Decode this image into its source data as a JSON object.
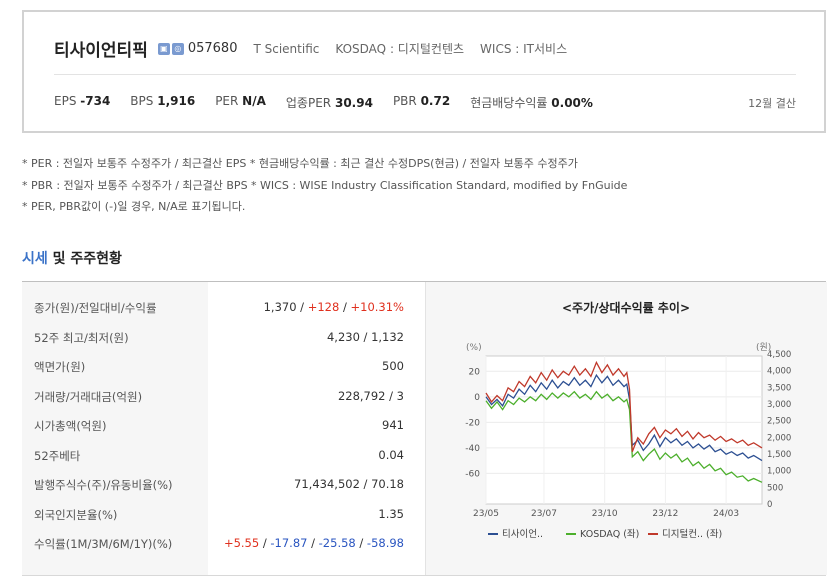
{
  "company": {
    "name": "티사이언티픽",
    "badge_icons": [
      "building-icon",
      "exchange-icon"
    ],
    "code": "057680",
    "english_name": "T Scientific",
    "market": "KOSDAQ : 디지털컨텐츠",
    "wics": "WICS : IT서비스"
  },
  "metrics": [
    {
      "label": "EPS",
      "value": "-734"
    },
    {
      "label": "BPS",
      "value": "1,916"
    },
    {
      "label": "PER",
      "value": "N/A"
    },
    {
      "label": "업종PER",
      "value": "30.94"
    },
    {
      "label": "PBR",
      "value": "0.72"
    },
    {
      "label": "현금배당수익률",
      "value": "0.00%"
    }
  ],
  "closing_month": "12월 결산",
  "notes": [
    "* PER : 전일자 보통주 수정주가 / 최근결산 EPS * 현금배당수익률 : 최근 결산 수정DPS(현금) / 전일자 보통주 수정주가",
    "* PBR : 전일자 보통주 수정주가 / 최근결산 BPS * WICS : WISE Industry Classification Standard, modified by FnGuide",
    "* PER, PBR값이 (-)일 경우, N/A로 표기됩니다."
  ],
  "section": {
    "accent": "시세",
    "rest": " 및 주주현황"
  },
  "table": {
    "price_row": {
      "label": "종가(원)/전일대비/수익률",
      "price": "1,370",
      "change": "+128",
      "rate": "+10.31%"
    },
    "rows": [
      {
        "label": "52주 최고/최저(원)",
        "value": "4,230 / 1,132"
      },
      {
        "label": "액면가(원)",
        "value": "500"
      },
      {
        "label": "거래량/거래대금(억원)",
        "value": "228,792 / 3"
      },
      {
        "label": "시가총액(억원)",
        "value": "941"
      },
      {
        "label": "52주베타",
        "value": "0.04"
      },
      {
        "label": "발행주식수(주)/유동비율(%)",
        "value": "71,434,502 / 70.18"
      },
      {
        "label": "외국인지분율(%)",
        "value": "1.35"
      }
    ],
    "returns_row": {
      "label": "수익률(1M/3M/6M/1Y)(%)",
      "r1m": "+5.55",
      "r3m": "-17.87",
      "r6m": "-25.58",
      "r1y": "-58.98",
      "sep": " / "
    }
  },
  "chart_data": {
    "type": "line",
    "title": "<주가/상대수익률 추이>",
    "left_unit": "(%)",
    "right_unit": "(원)",
    "x_ticks": [
      "23/05",
      "23/07",
      "23/10",
      "23/12",
      "24/03"
    ],
    "y_left_ticks": [
      20,
      0,
      -20,
      -40,
      -60
    ],
    "y_left_range": [
      -84,
      32
    ],
    "y_right_ticks": [
      "4,500",
      "4,000",
      "3,500",
      "3,000",
      "2,500",
      "2,000",
      "1,500",
      "1,000",
      "500",
      "0"
    ],
    "y_right_range": [
      0,
      4500
    ],
    "x_range": [
      0,
      100
    ],
    "series": [
      {
        "name": "티사이언..",
        "axis": "left",
        "color": "#2c4f92",
        "points": [
          [
            0,
            0
          ],
          [
            2,
            -6
          ],
          [
            4,
            -2
          ],
          [
            6,
            -7
          ],
          [
            8,
            2
          ],
          [
            10,
            -1
          ],
          [
            12,
            6
          ],
          [
            14,
            2
          ],
          [
            16,
            9
          ],
          [
            18,
            4
          ],
          [
            20,
            11
          ],
          [
            22,
            6
          ],
          [
            24,
            13
          ],
          [
            26,
            7
          ],
          [
            28,
            12
          ],
          [
            30,
            9
          ],
          [
            32,
            15
          ],
          [
            34,
            9
          ],
          [
            36,
            13
          ],
          [
            38,
            8
          ],
          [
            40,
            17
          ],
          [
            42,
            11
          ],
          [
            44,
            16
          ],
          [
            46,
            9
          ],
          [
            48,
            13
          ],
          [
            50,
            8
          ],
          [
            51,
            10
          ],
          [
            52,
            -2
          ],
          [
            53,
            -38
          ],
          [
            55,
            -34
          ],
          [
            57,
            -42
          ],
          [
            59,
            -37
          ],
          [
            61,
            -30
          ],
          [
            63,
            -39
          ],
          [
            65,
            -32
          ],
          [
            67,
            -36
          ],
          [
            69,
            -33
          ],
          [
            71,
            -38
          ],
          [
            73,
            -35
          ],
          [
            75,
            -40
          ],
          [
            77,
            -37
          ],
          [
            79,
            -41
          ],
          [
            81,
            -38
          ],
          [
            83,
            -43
          ],
          [
            85,
            -41
          ],
          [
            87,
            -45
          ],
          [
            89,
            -43
          ],
          [
            91,
            -46
          ],
          [
            93,
            -44
          ],
          [
            95,
            -48
          ],
          [
            97,
            -46
          ],
          [
            100,
            -50
          ]
        ]
      },
      {
        "name": "KOSDAQ (좌)",
        "axis": "left",
        "color": "#4caf2c",
        "points": [
          [
            0,
            -3
          ],
          [
            2,
            -9
          ],
          [
            4,
            -4
          ],
          [
            6,
            -10
          ],
          [
            8,
            -3
          ],
          [
            10,
            -6
          ],
          [
            12,
            -1
          ],
          [
            14,
            -4
          ],
          [
            16,
            0
          ],
          [
            18,
            -3
          ],
          [
            20,
            2
          ],
          [
            22,
            -2
          ],
          [
            24,
            3
          ],
          [
            26,
            -1
          ],
          [
            28,
            3
          ],
          [
            30,
            0
          ],
          [
            32,
            4
          ],
          [
            34,
            -1
          ],
          [
            36,
            2
          ],
          [
            38,
            -2
          ],
          [
            40,
            4
          ],
          [
            42,
            -1
          ],
          [
            44,
            2
          ],
          [
            46,
            -3
          ],
          [
            48,
            0
          ],
          [
            50,
            -4
          ],
          [
            51,
            -2
          ],
          [
            52,
            -10
          ],
          [
            53,
            -47
          ],
          [
            55,
            -43
          ],
          [
            57,
            -50
          ],
          [
            59,
            -45
          ],
          [
            61,
            -41
          ],
          [
            63,
            -49
          ],
          [
            65,
            -44
          ],
          [
            67,
            -48
          ],
          [
            69,
            -45
          ],
          [
            71,
            -51
          ],
          [
            73,
            -48
          ],
          [
            75,
            -54
          ],
          [
            77,
            -51
          ],
          [
            79,
            -56
          ],
          [
            81,
            -53
          ],
          [
            83,
            -58
          ],
          [
            85,
            -56
          ],
          [
            87,
            -61
          ],
          [
            89,
            -59
          ],
          [
            91,
            -63
          ],
          [
            93,
            -62
          ],
          [
            95,
            -66
          ],
          [
            97,
            -64
          ],
          [
            100,
            -67
          ]
        ]
      },
      {
        "name": "디지털컨..",
        "axis": "left",
        "color": "#c0392b",
        "points": [
          [
            0,
            3
          ],
          [
            2,
            -4
          ],
          [
            4,
            1
          ],
          [
            6,
            -3
          ],
          [
            8,
            7
          ],
          [
            10,
            4
          ],
          [
            12,
            12
          ],
          [
            14,
            8
          ],
          [
            16,
            16
          ],
          [
            18,
            11
          ],
          [
            20,
            19
          ],
          [
            22,
            13
          ],
          [
            24,
            21
          ],
          [
            26,
            15
          ],
          [
            28,
            20
          ],
          [
            30,
            17
          ],
          [
            32,
            24
          ],
          [
            34,
            17
          ],
          [
            36,
            22
          ],
          [
            38,
            16
          ],
          [
            40,
            27
          ],
          [
            42,
            19
          ],
          [
            44,
            25
          ],
          [
            46,
            17
          ],
          [
            48,
            22
          ],
          [
            50,
            16
          ],
          [
            51,
            19
          ],
          [
            52,
            6
          ],
          [
            53,
            -43
          ],
          [
            55,
            -32
          ],
          [
            57,
            -37
          ],
          [
            59,
            -29
          ],
          [
            61,
            -24
          ],
          [
            63,
            -32
          ],
          [
            65,
            -26
          ],
          [
            67,
            -29
          ],
          [
            69,
            -25
          ],
          [
            71,
            -31
          ],
          [
            73,
            -27
          ],
          [
            75,
            -33
          ],
          [
            77,
            -28
          ],
          [
            79,
            -32
          ],
          [
            81,
            -30
          ],
          [
            83,
            -34
          ],
          [
            85,
            -31
          ],
          [
            87,
            -35
          ],
          [
            89,
            -33
          ],
          [
            91,
            -36
          ],
          [
            93,
            -34
          ],
          [
            95,
            -38
          ],
          [
            97,
            -36
          ],
          [
            100,
            -40
          ]
        ]
      }
    ],
    "legend": [
      "티사이언..",
      "KOSDAQ (좌)",
      "디지털컨.. (좌)"
    ],
    "grid": true
  }
}
